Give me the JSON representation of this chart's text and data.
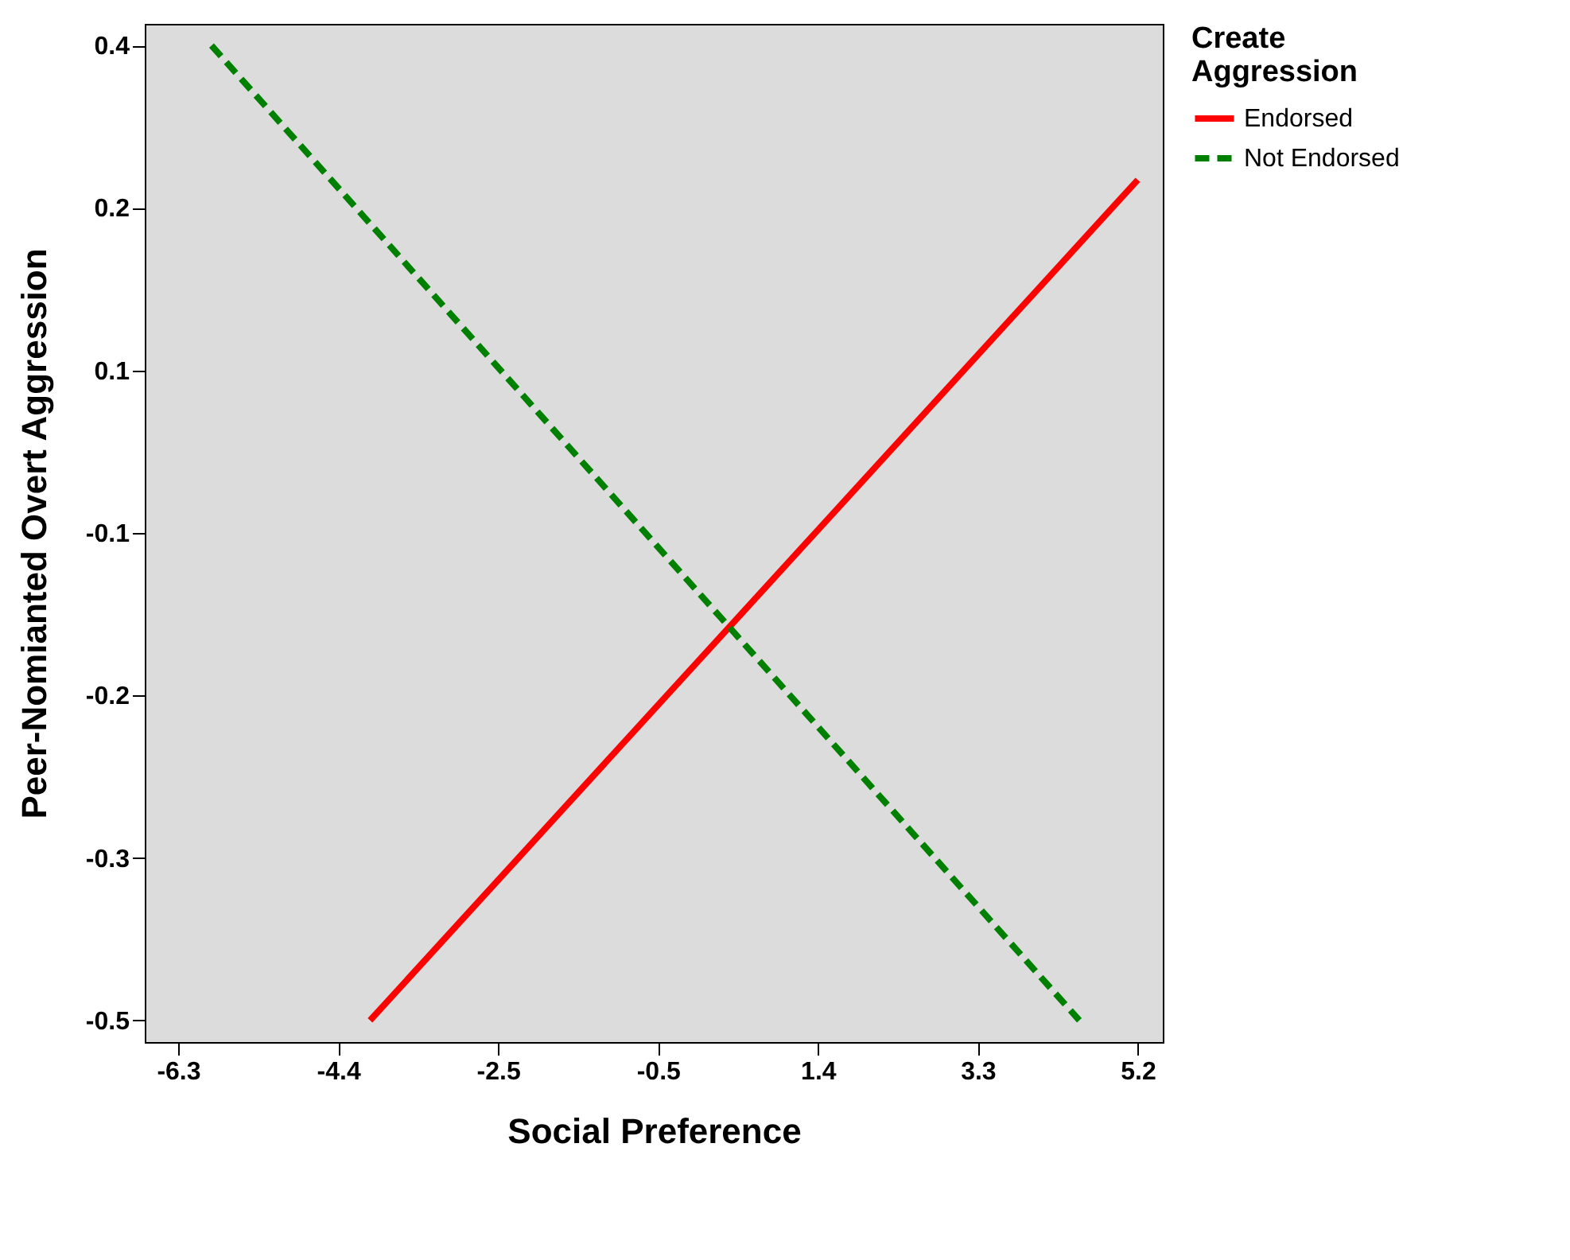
{
  "chart_data": {
    "type": "line",
    "xlabel": "Social Preference",
    "ylabel": "Peer-Nomianted Overt Aggression",
    "legend_title": "Create Aggression",
    "legend": "top right",
    "grid": false,
    "marker": "none",
    "xlim": [
      -6.7,
      5.5
    ],
    "ylim": [
      -0.52,
      0.42
    ],
    "xticks": [
      {
        "value": -6.3,
        "label": "-6.3"
      },
      {
        "value": -4.383,
        "label": "-4.4"
      },
      {
        "value": -2.467,
        "label": "-2.5"
      },
      {
        "value": -0.55,
        "label": "-0.5"
      },
      {
        "value": 1.367,
        "label": "1.4"
      },
      {
        "value": 3.283,
        "label": "3.3"
      },
      {
        "value": 5.2,
        "label": "5.2"
      }
    ],
    "yticks": [
      {
        "value": 0.4,
        "label": "0.4"
      },
      {
        "value": 0.25,
        "label": "0.2"
      },
      {
        "value": 0.1,
        "label": "0.1"
      },
      {
        "value": -0.05,
        "label": "-0.1"
      },
      {
        "value": -0.2,
        "label": "-0.2"
      },
      {
        "value": -0.35,
        "label": "-0.3"
      },
      {
        "value": -0.5,
        "label": "-0.5"
      }
    ],
    "series": [
      {
        "name": "Endorsed",
        "color": "#ff0000",
        "line_style": "solid",
        "x": [
          -4.0,
          5.2
        ],
        "values": [
          -0.5,
          0.276
        ]
      },
      {
        "name": "Not Endorsed",
        "color": "#008000",
        "line_style": "dashed",
        "x": [
          -5.9,
          4.5
        ],
        "values": [
          0.4,
          -0.5
        ]
      }
    ]
  }
}
